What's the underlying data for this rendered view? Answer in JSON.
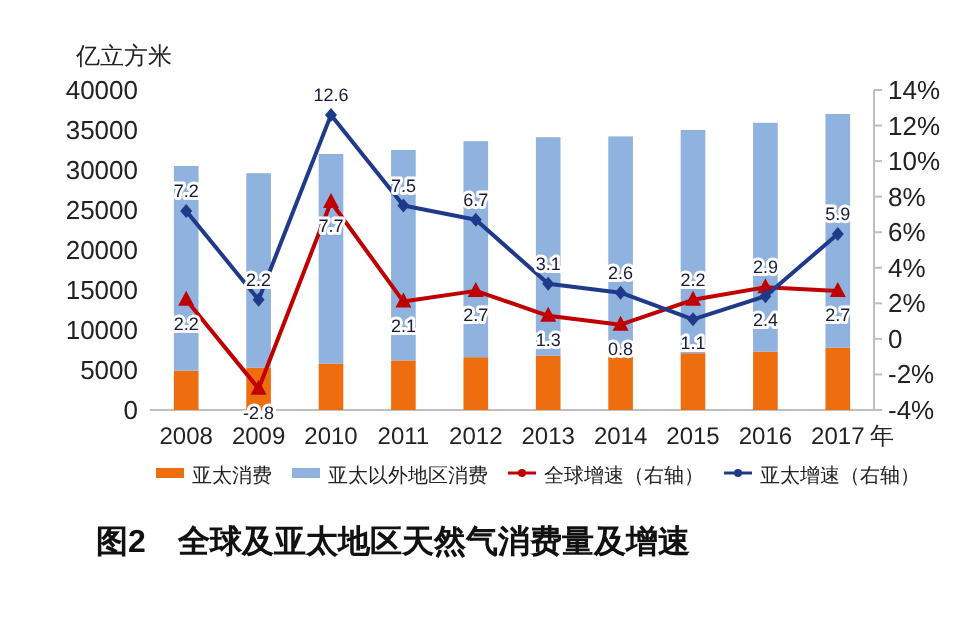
{
  "chart_data": {
    "type": "bar",
    "title": "图2　全球及亚太地区天然气消费量及增速",
    "ylabel": "亿立方米",
    "xlabel": "年",
    "categories": [
      "2008",
      "2009",
      "2010",
      "2011",
      "2012",
      "2013",
      "2014",
      "2015",
      "2016",
      "2017"
    ],
    "stacked": true,
    "legend": "bottom",
    "ylim": [
      0,
      40000
    ],
    "yticks": [
      0,
      5000,
      10000,
      15000,
      20000,
      25000,
      30000,
      35000,
      40000
    ],
    "y2lim": [
      -4,
      14
    ],
    "y2ticks": [
      {
        "value": -4,
        "label": "-4%"
      },
      {
        "value": -2,
        "label": "-2%"
      },
      {
        "value": 0,
        "label": "0"
      },
      {
        "value": 2,
        "label": "2%"
      },
      {
        "value": 4,
        "label": "4%"
      },
      {
        "value": 6,
        "label": "6%"
      },
      {
        "value": 8,
        "label": "8%"
      },
      {
        "value": 10,
        "label": "10%"
      },
      {
        "value": 12,
        "label": "12%"
      },
      {
        "value": 14,
        "label": "14%"
      }
    ],
    "series": [
      {
        "name": "亚太消费",
        "color": "#ed6d0f",
        "values": [
          4900,
          5300,
          5800,
          6200,
          6600,
          6800,
          7000,
          7100,
          7300,
          7800
        ]
      },
      {
        "name": "亚太以外地区消费",
        "color": "#8fb2de",
        "values": [
          25600,
          24300,
          26200,
          26300,
          27000,
          27300,
          27200,
          27900,
          28600,
          29200
        ]
      },
      {
        "name": "全球增速（右轴）",
        "type": "line",
        "axis": "y2",
        "color": "#c00000",
        "marker": "triangle",
        "data_labels": true,
        "values": [
          2.2,
          -2.8,
          7.7,
          2.1,
          2.7,
          1.3,
          0.8,
          2.2,
          2.9,
          2.7
        ]
      },
      {
        "name": "亚太增速（右轴）",
        "type": "line",
        "axis": "y2",
        "color": "#1f3a8a",
        "marker": "diamond",
        "data_labels": true,
        "values": [
          7.2,
          2.2,
          12.6,
          7.5,
          6.7,
          3.1,
          2.6,
          1.1,
          2.4,
          5.9
        ]
      }
    ]
  }
}
